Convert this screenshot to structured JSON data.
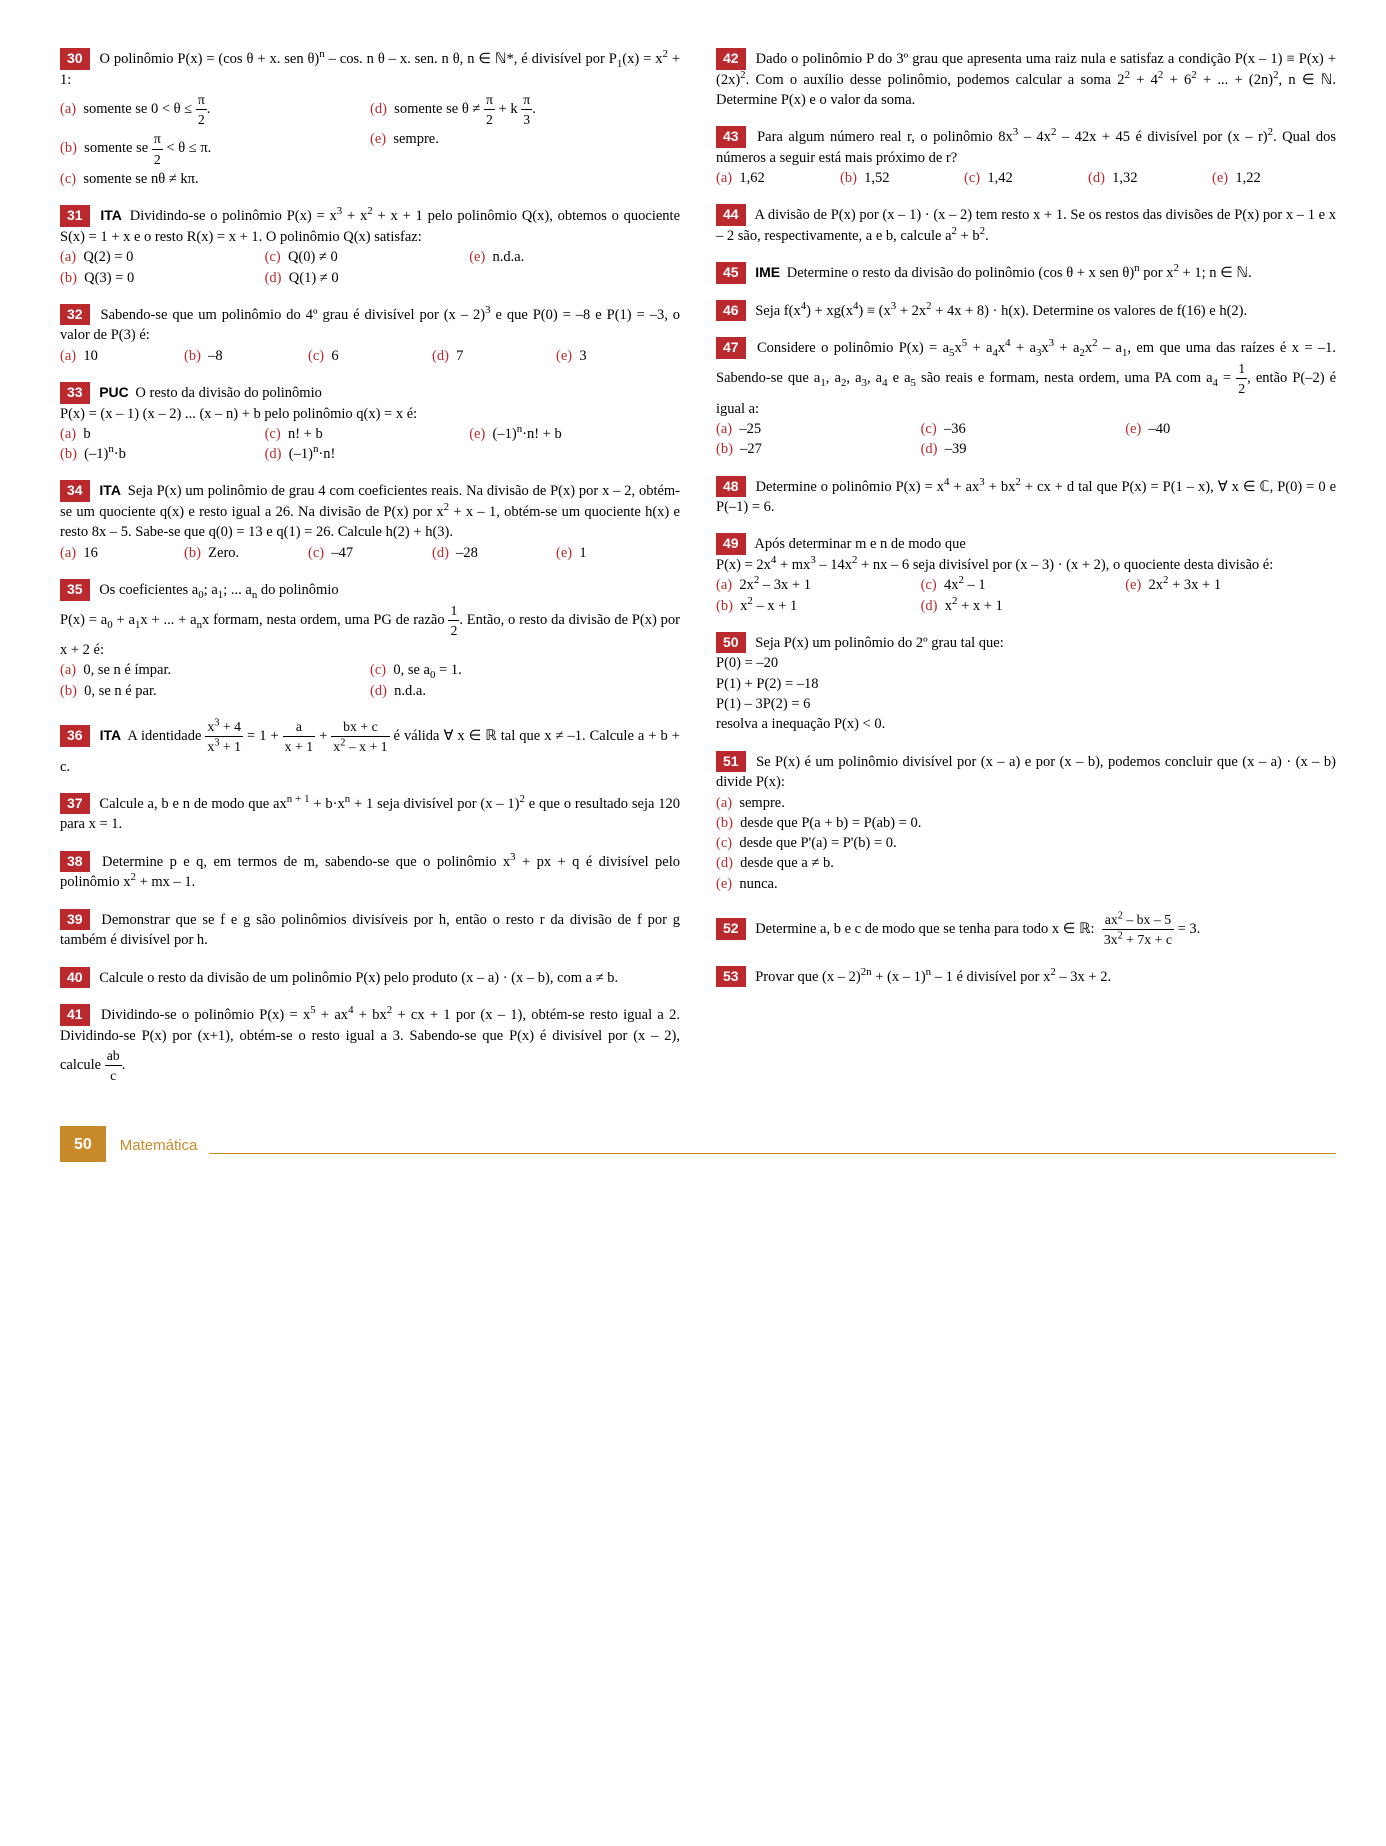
{
  "page": {
    "number": "50",
    "label": "Matemática"
  },
  "left": [
    {
      "num": "30",
      "body": "O polinômio P(x) = (cos θ + x. sen θ)<sup>n</sup> – cos. n θ – x. sen. n θ, n ∈ ℕ*, é divisível por P<sub>1</sub>(x) = x<sup>2</sup> + 1:",
      "opts": [
        "somente se 0 < θ ≤ <span class='frac'><span class='num'>π</span><span class='den'>2</span></span>.",
        "somente se <span class='frac'><span class='num'>π</span><span class='den'>2</span></span> < θ ≤ π.",
        "somente se nθ ≠ kπ.",
        "somente se θ ≠ <span class='frac'><span class='num'>π</span><span class='den'>2</span></span> + k <span class='frac'><span class='num'>π</span><span class='den'>3</span></span>.",
        "sempre."
      ],
      "layout": "twocol-ad-be"
    },
    {
      "num": "31",
      "tag": "ITA",
      "body": "Dividindo-se o polinômio P(x) = x<sup>3</sup> + x<sup>2</sup> + x + 1 pelo polinômio Q(x), obtemos o quociente S(x) = 1 + x e o resto R(x) = x + 1. O polinômio Q(x) satisfaz:",
      "opts": [
        "Q(2) = 0",
        "Q(3) = 0",
        "Q(0) ≠ 0",
        "Q(1) ≠ 0",
        "n.d.a."
      ],
      "layout": "3col-ace-bd"
    },
    {
      "num": "32",
      "body": "Sabendo-se que um polinômio do 4º grau é divisível por (x – 2)<sup>3</sup> e que P(0) = –8 e P(1) = –3, o valor de P(3) é:",
      "opts": [
        "10",
        "–8",
        "6",
        "7",
        "3"
      ],
      "layout": "row5"
    },
    {
      "num": "33",
      "tag": "PUC",
      "body": "O resto da divisão do polinômio<br>P(x) = (x – 1) (x – 2) ... (x – n) + b pelo polinômio q(x) = x é:",
      "opts": [
        "b",
        "(–1)<sup>n</sup>·b",
        "n! + b",
        "(–1)<sup>n</sup>·n!",
        "(–1)<sup>n</sup>·n! + b"
      ],
      "layout": "3col-ace-bd"
    },
    {
      "num": "34",
      "tag": "ITA",
      "body": "Seja P(x) um polinômio de grau 4 com coeficientes reais. Na divisão de P(x) por x – 2, obtém-se um quociente q(x) e resto igual a 26. Na divisão de P(x) por x<sup>2</sup> + x – 1, obtém-se um quociente h(x) e resto 8x – 5. Sabe-se que q(0) = 13 e q(1) = 26. Calcule h(2) + h(3).",
      "opts": [
        "16",
        "Zero.",
        "–47",
        "–28",
        "1"
      ],
      "layout": "row5"
    },
    {
      "num": "35",
      "body": "Os coeficientes a<sub>0</sub>; a<sub>1</sub>; ... a<sub>n</sub> do polinômio<br>P(x) = a<sub>0</sub> + a<sub>1</sub>x + ... + a<sub>n</sub>x formam, nesta ordem, uma PG de razão <span class='frac'><span class='num'>1</span><span class='den'>2</span></span>. Então, o resto da divisão de P(x) por x + 2 é:",
      "opts": [
        "0, se n é ímpar.",
        "0, se n é par.",
        "0, se a<sub>0</sub> = 1.",
        "n.d.a."
      ],
      "layout": "2col-ac-bd"
    },
    {
      "num": "36",
      "tag": "ITA",
      "body": "A identidade <span class='frac'><span class='num'>x<sup>3</sup> + 4</span><span class='den'>x<sup>3</sup> + 1</span></span> = 1 + <span class='frac'><span class='num'>a</span><span class='den'>x + 1</span></span> + <span class='frac'><span class='num'>bx + c</span><span class='den'>x<sup>2</sup> – x + 1</span></span> é válida ∀ x ∈ ℝ tal que x ≠ –1. Calcule a + b + c."
    },
    {
      "num": "37",
      "body": "Calcule a, b e n de modo que ax<sup>n + 1</sup> + b·x<sup>n</sup> + 1 seja divisível por (x – 1)<sup>2</sup> e que o resultado seja 120 para x = 1."
    },
    {
      "num": "38",
      "body": "Determine p e q, em termos de m, sabendo-se que o polinômio x<sup>3</sup> + px + q é divisível pelo polinômio x<sup>2</sup> + mx – 1."
    },
    {
      "num": "39",
      "body": "Demonstrar que se f e g são polinômios divisíveis por h, então o resto r da divisão de f por g também é divisível por h."
    },
    {
      "num": "40",
      "body": "Calcule o resto da divisão de um polinômio P(x) pelo produto (x – a) · (x – b), com a ≠ b."
    },
    {
      "num": "41",
      "body": "Dividindo-se o polinômio P(x) = x<sup>5</sup> + ax<sup>4</sup> + bx<sup>2</sup> + cx + 1 por (x – 1), obtém-se resto igual a 2. Dividindo-se P(x) por (x+1), obtém-se o resto igual a 3. Sabendo-se que P(x) é divisível por (x – 2), calcule <span class='frac'><span class='num'>ab</span><span class='den'>c</span></span>."
    }
  ],
  "right": [
    {
      "num": "42",
      "body": "Dado o polinômio P do 3º grau que apresenta uma raiz nula e satisfaz a condição P(x – 1) ≡ P(x) + (2x)<sup>2</sup>. Com o auxílio desse polinômio, podemos calcular a soma 2<sup>2</sup> + 4<sup>2</sup> + 6<sup>2</sup> + ... + (2n)<sup>2</sup>, n ∈ ℕ. Determine P(x) e o valor da soma."
    },
    {
      "num": "43",
      "body": "Para algum número real r, o polinômio 8x<sup>3</sup> – 4x<sup>2</sup> – 42x + 45 é divisível por (x – r)<sup>2</sup>. Qual dos números a seguir está mais próximo de r?",
      "opts": [
        "1,62",
        "1,52",
        "1,42",
        "1,32",
        "1,22"
      ],
      "layout": "row5"
    },
    {
      "num": "44",
      "body": "A divisão de P(x) por (x – 1) · (x – 2) tem resto x + 1. Se os restos das divisões de P(x) por x – 1 e x – 2 são, respectivamente, a e b, calcule a<sup>2</sup> + b<sup>2</sup>."
    },
    {
      "num": "45",
      "tag": "IME",
      "body": "Determine o resto da divisão do polinômio (cos θ + x sen θ)<sup>n</sup> por x<sup>2</sup> + 1; n ∈ ℕ."
    },
    {
      "num": "46",
      "body": "Seja f(x<sup>4</sup>) + xg(x<sup>4</sup>) ≡ (x<sup>3</sup> + 2x<sup>2</sup> + 4x + 8) · h(x). Determine os valores de f(16) e h(2)."
    },
    {
      "num": "47",
      "body": "Considere o polinômio P(x) = a<sub>5</sub>x<sup>5</sup> + a<sub>4</sub>x<sup>4</sup> + a<sub>3</sub>x<sup>3</sup> + a<sub>2</sub>x<sup>2</sup> – a<sub>1</sub>, em que uma das raízes é x = –1. Sabendo-se que a<sub>1</sub>, a<sub>2</sub>, a<sub>3</sub>, a<sub>4</sub> e a<sub>5</sub> são reais e formam, nesta ordem, uma PA com a<sub>4</sub> = <span class='frac'><span class='num'>1</span><span class='den'>2</span></span>, então P(–2) é igual a:",
      "opts": [
        "–25",
        "–27",
        "–36",
        "–39",
        "–40"
      ],
      "layout": "3col-ace-bd"
    },
    {
      "num": "48",
      "body": "Determine o polinômio P(x) = x<sup>4</sup> + ax<sup>3</sup> + bx<sup>2</sup> + cx + d tal que P(x) = P(1 – x), ∀ x ∈ ℂ, P(0) = 0 e P(–1) = 6."
    },
    {
      "num": "49",
      "body": "Após determinar m e n de modo que<br>P(x) = 2x<sup>4</sup> + mx<sup>3</sup> – 14x<sup>2</sup> + nx – 6 seja divisível por (x – 3) · (x + 2), o quociente desta divisão é:",
      "opts": [
        "2x<sup>2</sup> – 3x + 1",
        "x<sup>2</sup> – x + 1",
        "4x<sup>2</sup> – 1",
        "x<sup>2</sup> + x + 1",
        "2x<sup>2</sup> + 3x + 1"
      ],
      "layout": "3col-ace-bd"
    },
    {
      "num": "50",
      "body": "Seja P(x) um polinômio do 2º grau tal que:<br>P(0) = –20<br>P(1) + P(2) = –18<br>P(1) – 3P(2) = 6<br>resolva a inequação P(x) < 0."
    },
    {
      "num": "51",
      "body": "Se P(x) é um polinômio divisível por (x – a) e por (x – b), podemos concluir que (x – a) · (x – b) divide P(x):",
      "opts": [
        "sempre.",
        "desde que P(a + b) = P(ab) = 0.",
        "desde que P'(a) = P'(b) = 0.",
        "desde que a ≠ b.",
        "nunca."
      ],
      "layout": "stack"
    },
    {
      "num": "52",
      "body": "Determine a, b e c de modo que se tenha para todo x ∈ ℝ: &nbsp;<span class='frac'><span class='num'>ax<sup>2</sup> – bx – 5</span><span class='den'>3x<sup>2</sup> + 7x + c</span></span> = 3."
    },
    {
      "num": "53",
      "body": "Provar que (x – 2)<sup>2n</sup> + (x – 1)<sup>n</sup> – 1 é divisível por x<sup>2</sup> – 3x + 2."
    }
  ],
  "letters": [
    "(a)",
    "(b)",
    "(c)",
    "(d)",
    "(e)"
  ]
}
